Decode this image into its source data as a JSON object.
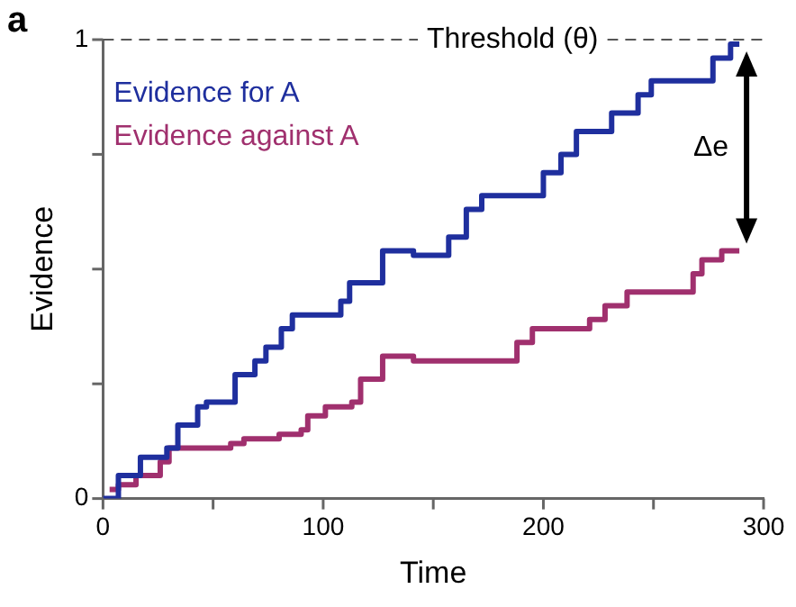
{
  "chart_data": {
    "type": "step",
    "xlabel": "Time",
    "ylabel": "Evidence",
    "xlim": [
      0,
      300
    ],
    "xticks": [
      0,
      {
        "value": 50,
        "label": null
      },
      100,
      {
        "value": 150,
        "label": null
      },
      200,
      {
        "value": 250,
        "label": null
      },
      300
    ],
    "ylim": [
      0,
      1
    ],
    "yticks": [
      0,
      {
        "value": 0.25,
        "label": null
      },
      {
        "value": 0.5,
        "label": null
      },
      {
        "value": 0.75,
        "label": null
      },
      1
    ],
    "legend": "top left",
    "line_style": "solid",
    "marker": "none",
    "series": [
      {
        "name": "Evidence for A",
        "color": "#1f2f9e",
        "x": [
          0,
          7,
          17,
          29,
          34,
          43,
          47,
          60,
          69,
          74,
          81,
          86,
          108,
          112,
          127,
          141,
          157,
          165,
          172,
          200,
          208,
          215,
          231,
          243,
          249,
          277,
          285,
          289
        ],
        "values": [
          0,
          0.05,
          0.09,
          0.11,
          0.16,
          0.2,
          0.21,
          0.27,
          0.3,
          0.33,
          0.37,
          0.4,
          0.43,
          0.47,
          0.54,
          0.53,
          0.57,
          0.63,
          0.66,
          0.71,
          0.75,
          0.8,
          0.84,
          0.88,
          0.91,
          0.96,
          0.99,
          0.99
        ]
      },
      {
        "name": "Evidence against A",
        "color": "#a0306e",
        "x": [
          3,
          7,
          15,
          26,
          30,
          58,
          64,
          80,
          90,
          93,
          101,
          113,
          117,
          127,
          141,
          188,
          195,
          221,
          228,
          238,
          268,
          272,
          281,
          289
        ],
        "values": [
          0.02,
          0.03,
          0.05,
          0.08,
          0.11,
          0.12,
          0.13,
          0.14,
          0.15,
          0.18,
          0.2,
          0.21,
          0.26,
          0.31,
          0.3,
          0.34,
          0.37,
          0.39,
          0.42,
          0.45,
          0.49,
          0.52,
          0.54,
          0.54
        ]
      }
    ],
    "ref_lines": [
      {
        "axis": "y",
        "value": 1,
        "label": "Threshold (θ)",
        "color": "#555555",
        "line_style": "dashed"
      }
    ],
    "annotations": [
      "a",
      "Δe"
    ]
  }
}
